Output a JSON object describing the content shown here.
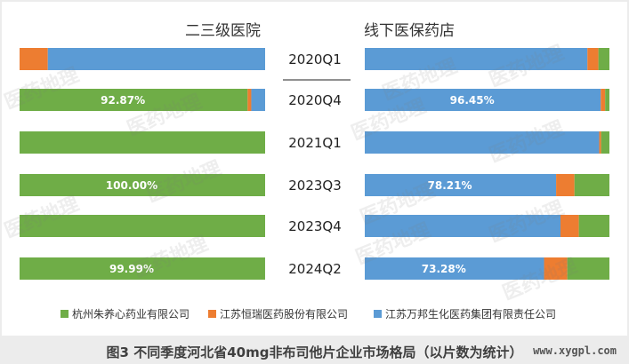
{
  "chart_data": [
    {
      "type": "bar",
      "orientation": "horizontal",
      "stacked": "percent",
      "title": "二三级医院",
      "categories": [
        "2020Q1",
        "2020Q4",
        "2021Q1",
        "2023Q3",
        "2023Q4",
        "2024Q2"
      ],
      "series": [
        {
          "name": "杭州朱养心药业有限公司",
          "color": "#6fad47",
          "values": [
            0.0,
            92.87,
            100.0,
            100.0,
            100.0,
            99.99
          ]
        },
        {
          "name": "江苏恒瑞医药股份有限公司",
          "color": "#ed7d31",
          "values": [
            11.5,
            1.5,
            0.0,
            0.0,
            0.0,
            0.0
          ]
        },
        {
          "name": "江苏万邦生化医药集团有限责任公司",
          "color": "#5b9bd5",
          "values": [
            88.5,
            5.63,
            0.0,
            0.0,
            0.0,
            0.01
          ]
        }
      ],
      "data_labels": [
        "",
        "92.87%",
        "",
        "100.00%",
        "",
        "99.99%"
      ],
      "xlim": [
        0,
        100
      ]
    },
    {
      "type": "bar",
      "orientation": "horizontal",
      "stacked": "percent",
      "title": "线下医保药店",
      "categories": [
        "2020Q1",
        "2020Q4",
        "2021Q1",
        "2023Q3",
        "2023Q4",
        "2024Q2"
      ],
      "series": [
        {
          "name": "江苏万邦生化医药集团有限责任公司",
          "color": "#5b9bd5",
          "values": [
            91.0,
            96.45,
            95.8,
            78.21,
            80.0,
            73.28
          ]
        },
        {
          "name": "江苏恒瑞医药股份有限公司",
          "color": "#ed7d31",
          "values": [
            4.5,
            1.8,
            0.8,
            7.5,
            7.5,
            9.5
          ]
        },
        {
          "name": "杭州朱养心药业有限公司",
          "color": "#6fad47",
          "values": [
            4.5,
            1.75,
            3.4,
            14.29,
            12.5,
            17.22
          ]
        }
      ],
      "data_labels": [
        "",
        "96.45%",
        "",
        "78.21%",
        "",
        "73.28%"
      ],
      "xlim": [
        0,
        100
      ]
    }
  ],
  "legend": {
    "position": "bottom",
    "items": [
      {
        "name": "杭州朱养心药业有限公司",
        "color": "#6fad47"
      },
      {
        "name": "江苏恒瑞医药股份有限公司",
        "color": "#ed7d31"
      },
      {
        "name": "江苏万邦生化医药集团有限责任公司",
        "color": "#5b9bd5"
      }
    ]
  },
  "watermark": "医药地理",
  "caption": "图3 不同季度河北省40mg非布司他片企业市场格局（以片数为统计）",
  "site": "www.xygpl.com"
}
